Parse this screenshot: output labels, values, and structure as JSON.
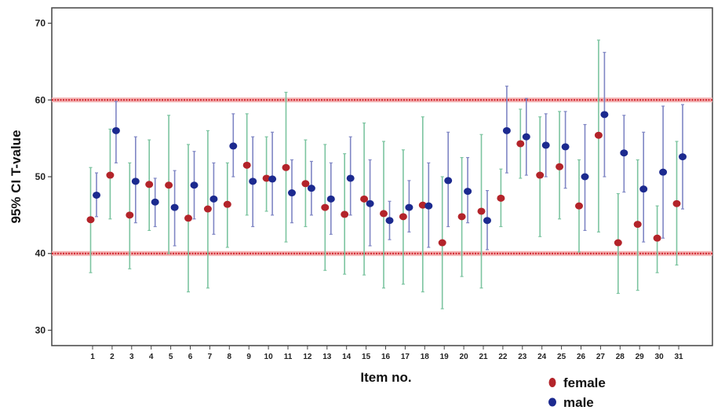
{
  "chart_data": {
    "type": "scatter",
    "subtype": "error-bar",
    "title": "",
    "xlabel": "Item no.",
    "ylabel": "95% CI T-value",
    "ylim": [
      28,
      72
    ],
    "yticks": [
      30,
      40,
      50,
      60,
      70
    ],
    "categories": [
      "1",
      "2",
      "3",
      "4",
      "5",
      "6",
      "7",
      "8",
      "9",
      "10",
      "11",
      "12",
      "13",
      "14",
      "15",
      "16",
      "17",
      "18",
      "19",
      "20",
      "21",
      "22",
      "23",
      "24",
      "25",
      "26",
      "27",
      "28",
      "29",
      "30",
      "31"
    ],
    "reference_lines": [
      40,
      60
    ],
    "reference_line_color": "#d0202a",
    "grid": false,
    "legend_position": "bottom-right",
    "series": [
      {
        "name": "female",
        "color": "#b3242a",
        "bar_color": "#7cc4a0",
        "mean": [
          44.4,
          50.2,
          45.0,
          49.0,
          48.9,
          44.6,
          45.8,
          46.4,
          51.5,
          49.8,
          51.2,
          49.1,
          46.0,
          45.1,
          47.1,
          45.2,
          44.8,
          46.3,
          41.4,
          44.8,
          45.5,
          47.2,
          54.3,
          50.2,
          51.3,
          46.2,
          55.4,
          41.4,
          43.8,
          42.0,
          46.5
        ],
        "lower": [
          37.5,
          44.5,
          38.0,
          43.0,
          40.0,
          35.0,
          35.5,
          40.8,
          45.0,
          45.5,
          41.5,
          43.5,
          37.8,
          37.3,
          37.2,
          35.5,
          36.0,
          35.0,
          32.8,
          37.0,
          35.5,
          43.5,
          49.8,
          42.2,
          44.5,
          40.2,
          42.8,
          34.8,
          35.2,
          37.5,
          38.5
        ],
        "upper": [
          51.2,
          56.2,
          51.8,
          54.8,
          58.0,
          54.2,
          56.0,
          51.8,
          58.2,
          55.2,
          61.0,
          54.8,
          54.2,
          53.0,
          57.0,
          54.6,
          53.5,
          57.8,
          50.0,
          52.5,
          55.5,
          51.0,
          58.8,
          57.8,
          58.5,
          52.2,
          67.8,
          47.8,
          52.2,
          46.2,
          54.6
        ]
      },
      {
        "name": "male",
        "color": "#1c2a8f",
        "bar_color": "#7f86c4",
        "mean": [
          47.6,
          56.0,
          49.4,
          46.7,
          46.0,
          48.9,
          47.1,
          54.0,
          49.4,
          49.7,
          47.9,
          48.5,
          47.1,
          49.8,
          46.5,
          44.3,
          46.0,
          46.2,
          49.5,
          48.1,
          44.3,
          56.0,
          55.2,
          54.1,
          53.9,
          50.0,
          58.1,
          53.1,
          48.4,
          50.6,
          52.6
        ],
        "lower": [
          44.8,
          51.8,
          44.0,
          43.5,
          41.0,
          44.5,
          42.5,
          50.0,
          43.5,
          45.0,
          44.0,
          45.0,
          42.5,
          45.0,
          41.0,
          41.8,
          42.8,
          40.8,
          43.5,
          44.0,
          40.5,
          50.5,
          50.2,
          50.0,
          48.5,
          43.0,
          50.0,
          48.0,
          41.5,
          42.0,
          45.8
        ],
        "upper": [
          50.5,
          59.8,
          55.2,
          49.8,
          50.8,
          53.3,
          51.8,
          58.2,
          55.2,
          55.8,
          52.2,
          52.0,
          51.8,
          55.2,
          52.2,
          46.8,
          49.5,
          51.8,
          55.8,
          52.5,
          48.2,
          61.8,
          60.2,
          58.2,
          58.5,
          56.8,
          66.2,
          58.0,
          55.8,
          59.2,
          59.4
        ]
      }
    ]
  }
}
